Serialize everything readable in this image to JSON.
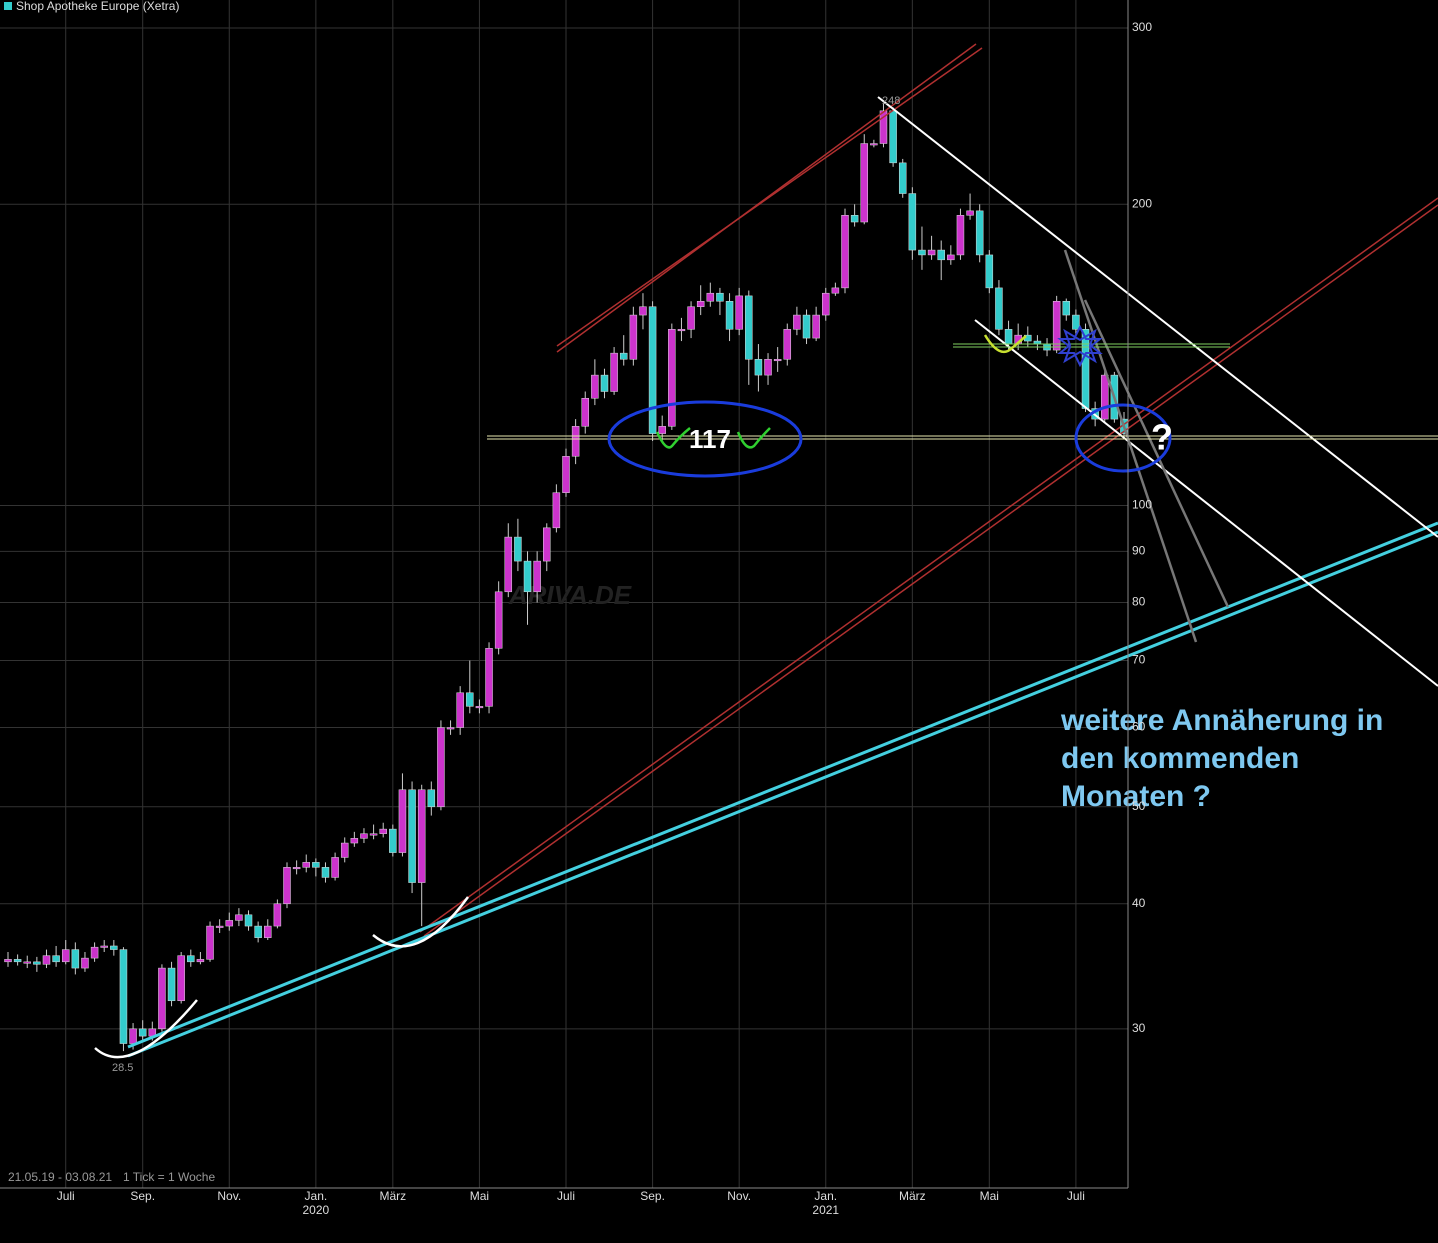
{
  "chart_data": {
    "type": "candlestick",
    "title": "Shop Apotheke Europe (Xetra)",
    "range_note": "21.05.19 - 03.08.21",
    "tick_note": "1 Tick = 1 Woche",
    "watermark": "ARIVA.DE",
    "up_color": "#cc33cc",
    "down_color": "#33cccc",
    "log_scale": true,
    "grid": true,
    "ylim": [
      20.8,
      320
    ],
    "yticks": [
      30,
      40,
      50,
      60,
      70,
      80,
      90,
      100,
      200,
      300
    ],
    "annotations": {
      "peak": "248",
      "low": "28.5",
      "level": "117",
      "question": "?",
      "comment": [
        "weitere Annäherung in",
        "den kommenden",
        "Monaten ?"
      ]
    },
    "categories": [
      null,
      null,
      null,
      null,
      null,
      null,
      "Juli",
      null,
      null,
      null,
      null,
      null,
      null,
      null,
      "Sep.",
      null,
      null,
      null,
      null,
      null,
      null,
      null,
      null,
      "Nov.",
      null,
      null,
      null,
      null,
      null,
      null,
      null,
      null,
      {
        "label": "Jan.",
        "year": "2020"
      },
      null,
      null,
      null,
      null,
      null,
      null,
      null,
      "März",
      null,
      null,
      null,
      null,
      null,
      null,
      null,
      null,
      "Mai",
      null,
      null,
      null,
      null,
      null,
      null,
      null,
      null,
      "Juli",
      null,
      null,
      null,
      null,
      null,
      null,
      null,
      null,
      "Sep.",
      null,
      null,
      null,
      null,
      null,
      null,
      null,
      null,
      "Nov.",
      null,
      null,
      null,
      null,
      null,
      null,
      null,
      null,
      {
        "label": "Jan.",
        "year": "2021"
      },
      null,
      null,
      null,
      null,
      null,
      null,
      null,
      null,
      "März",
      null,
      null,
      null,
      null,
      null,
      null,
      null,
      "Mai",
      null,
      null,
      null,
      null,
      null,
      null,
      null,
      null,
      "Juli",
      null,
      null,
      null,
      null,
      null
    ],
    "candles": [
      [
        35,
        35.8,
        34.6,
        35.2
      ],
      [
        35.2,
        35.6,
        34.7,
        35
      ],
      [
        35,
        35.5,
        34.5,
        35
      ],
      [
        35,
        35.4,
        34.2,
        34.8
      ],
      [
        34.8,
        36,
        34.5,
        35.5
      ],
      [
        35.5,
        36.3,
        34.6,
        35
      ],
      [
        35,
        36.8,
        34.8,
        36
      ],
      [
        36,
        36.6,
        34,
        34.5
      ],
      [
        34.5,
        35.8,
        34.2,
        35.3
      ],
      [
        35.3,
        36.6,
        35,
        36.2
      ],
      [
        36.2,
        36.8,
        35.8,
        36.3
      ],
      [
        36.3,
        36.8,
        35.5,
        36
      ],
      [
        36,
        36.2,
        28.5,
        29
      ],
      [
        29,
        30.4,
        28.6,
        30
      ],
      [
        30,
        30.6,
        29.2,
        29.5
      ],
      [
        29.5,
        30.5,
        29.2,
        30
      ],
      [
        30,
        34.8,
        29.8,
        34.5
      ],
      [
        34.5,
        35,
        31.6,
        32
      ],
      [
        32,
        35.8,
        31.8,
        35.5
      ],
      [
        35.5,
        36,
        34.6,
        35
      ],
      [
        35,
        35.8,
        34.8,
        35.2
      ],
      [
        35.2,
        38.4,
        35,
        38
      ],
      [
        38,
        38.6,
        37.4,
        38
      ],
      [
        38,
        39.2,
        37.6,
        38.5
      ],
      [
        38.5,
        39.6,
        38,
        39
      ],
      [
        39,
        39.4,
        37.6,
        38
      ],
      [
        38,
        38.4,
        36.6,
        37
      ],
      [
        37,
        38.6,
        36.8,
        38
      ],
      [
        38,
        40.4,
        37.8,
        40
      ],
      [
        40,
        44,
        39.6,
        43.5
      ],
      [
        43.5,
        44.2,
        42.8,
        43.5
      ],
      [
        43.5,
        44.8,
        43,
        44
      ],
      [
        44,
        44.4,
        42.6,
        43.5
      ],
      [
        43.5,
        44,
        42,
        42.5
      ],
      [
        42.5,
        45,
        42.2,
        44.5
      ],
      [
        44.5,
        46.6,
        44,
        46
      ],
      [
        46,
        47.2,
        45.6,
        46.5
      ],
      [
        46.5,
        47.6,
        46,
        47
      ],
      [
        47,
        48,
        46.4,
        47
      ],
      [
        47,
        48.2,
        46.6,
        47.5
      ],
      [
        47.5,
        48,
        44.6,
        45
      ],
      [
        45,
        54,
        44.6,
        52
      ],
      [
        52,
        53,
        41,
        42
      ],
      [
        42,
        52.6,
        38,
        52
      ],
      [
        52,
        53,
        49,
        50
      ],
      [
        50,
        61,
        49.6,
        60
      ],
      [
        60,
        61,
        59,
        60
      ],
      [
        60,
        66,
        59,
        65
      ],
      [
        65,
        70,
        62,
        63
      ],
      [
        63,
        64,
        62,
        63
      ],
      [
        63,
        73,
        62,
        72
      ],
      [
        72,
        84,
        71,
        82
      ],
      [
        82,
        96,
        81,
        93
      ],
      [
        93,
        97,
        86,
        88
      ],
      [
        88,
        90,
        76,
        82
      ],
      [
        82,
        90,
        80,
        88
      ],
      [
        88,
        96,
        86,
        95
      ],
      [
        95,
        105,
        94,
        103
      ],
      [
        103,
        114,
        102,
        112
      ],
      [
        112,
        122,
        110,
        120
      ],
      [
        120,
        130,
        118,
        128
      ],
      [
        128,
        140,
        126,
        135
      ],
      [
        135,
        137,
        128,
        130
      ],
      [
        130,
        144,
        129,
        142
      ],
      [
        142,
        148,
        138,
        140
      ],
      [
        140,
        158,
        138,
        155
      ],
      [
        155,
        163,
        150,
        158
      ],
      [
        158,
        160,
        116,
        118
      ],
      [
        118,
        123,
        116,
        120
      ],
      [
        120,
        152,
        119,
        150
      ],
      [
        150,
        154,
        146,
        150
      ],
      [
        150,
        160,
        147,
        158
      ],
      [
        158,
        166,
        155,
        160
      ],
      [
        160,
        167,
        158,
        163
      ],
      [
        163,
        165,
        155,
        160
      ],
      [
        160,
        163,
        146,
        150
      ],
      [
        150,
        165,
        148,
        162
      ],
      [
        162,
        164,
        132,
        140
      ],
      [
        140,
        145,
        130,
        135
      ],
      [
        135,
        142,
        132,
        140
      ],
      [
        140,
        144,
        136,
        140
      ],
      [
        140,
        152,
        138,
        150
      ],
      [
        150,
        158,
        148,
        155
      ],
      [
        155,
        157,
        145,
        147
      ],
      [
        147,
        158,
        146,
        155
      ],
      [
        155,
        165,
        153,
        163
      ],
      [
        163,
        167,
        162,
        165
      ],
      [
        165,
        198,
        163,
        195
      ],
      [
        195,
        200,
        190,
        192
      ],
      [
        192,
        235,
        191,
        230
      ],
      [
        230,
        232,
        228,
        230
      ],
      [
        230,
        252,
        228,
        248
      ],
      [
        248,
        250,
        218,
        220
      ],
      [
        220,
        222,
        203,
        205
      ],
      [
        205,
        208,
        176,
        180
      ],
      [
        180,
        190,
        172,
        178
      ],
      [
        178,
        186,
        176,
        180
      ],
      [
        180,
        184,
        168,
        176
      ],
      [
        176,
        182,
        174,
        178
      ],
      [
        178,
        198,
        176,
        195
      ],
      [
        195,
        205,
        193,
        197
      ],
      [
        197,
        200,
        175,
        178
      ],
      [
        178,
        180,
        163,
        165
      ],
      [
        165,
        168,
        148,
        150
      ],
      [
        150,
        153,
        143,
        145
      ],
      [
        145,
        152,
        143,
        148
      ],
      [
        148,
        151,
        144,
        146
      ],
      [
        146,
        148,
        143,
        145
      ],
      [
        145,
        147,
        141,
        143
      ],
      [
        143,
        162,
        142,
        160
      ],
      [
        160,
        161,
        153,
        155
      ],
      [
        155,
        157,
        148,
        150
      ],
      [
        150,
        152,
        124,
        125
      ],
      [
        125,
        127,
        120,
        122
      ],
      [
        122,
        137,
        121,
        135
      ],
      [
        135,
        136,
        121,
        122
      ],
      [
        122,
        124,
        117,
        118
      ]
    ]
  }
}
